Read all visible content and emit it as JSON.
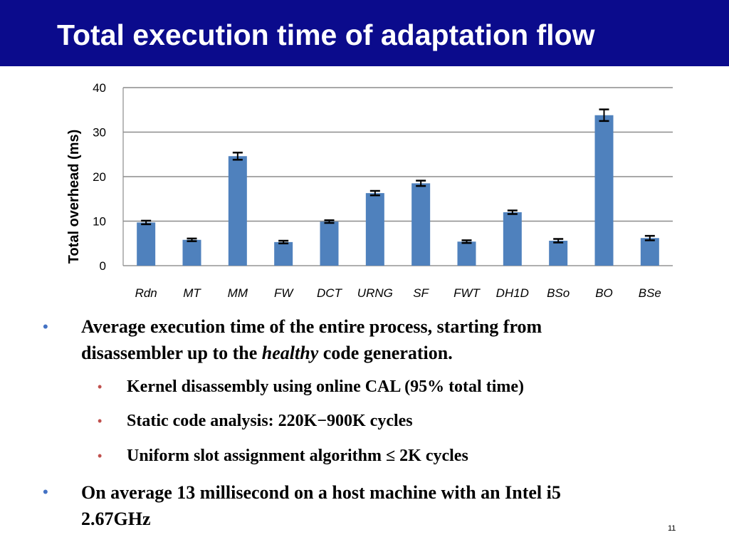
{
  "slide": {
    "title": "Total execution time of adaptation flow",
    "page_number": "11"
  },
  "chart_data": {
    "type": "bar",
    "categories": [
      "Rdn",
      "MT",
      "MM",
      "FW",
      "DCT",
      "URNG",
      "SF",
      "FWT",
      "DH1D",
      "BSo",
      "BO",
      "BSe"
    ],
    "values": [
      9.7,
      5.8,
      24.6,
      5.3,
      9.9,
      16.3,
      18.5,
      5.4,
      12.0,
      5.6,
      33.8,
      6.2
    ],
    "errors": [
      0.4,
      0.3,
      0.8,
      0.3,
      0.3,
      0.5,
      0.6,
      0.3,
      0.4,
      0.4,
      1.3,
      0.5
    ],
    "ylabel": "Total overhead  (ms)",
    "xlabel": "",
    "ylim": [
      0,
      40
    ],
    "yticks": [
      0,
      10,
      20,
      30,
      40
    ],
    "grid": true,
    "bar_color": "#4f81bd",
    "error_color": "#000000"
  },
  "bullets": {
    "b1_line1": "Average execution time of the entire process, starting from",
    "b1_line2_pre": "disassembler up to the ",
    "b1_line2_em": "healthy",
    "b1_line2_post": " code generation.",
    "sub1": "Kernel disassembly using online CAL (95% total time)",
    "sub2": "Static code analysis: 220K−900K cycles",
    "sub3": "Uniform slot assignment algorithm ≤ 2K cycles",
    "b2_line1": "On average 13 millisecond on a host machine with an Intel i5",
    "b2_line2": "2.67GHz",
    "marker": "•"
  }
}
